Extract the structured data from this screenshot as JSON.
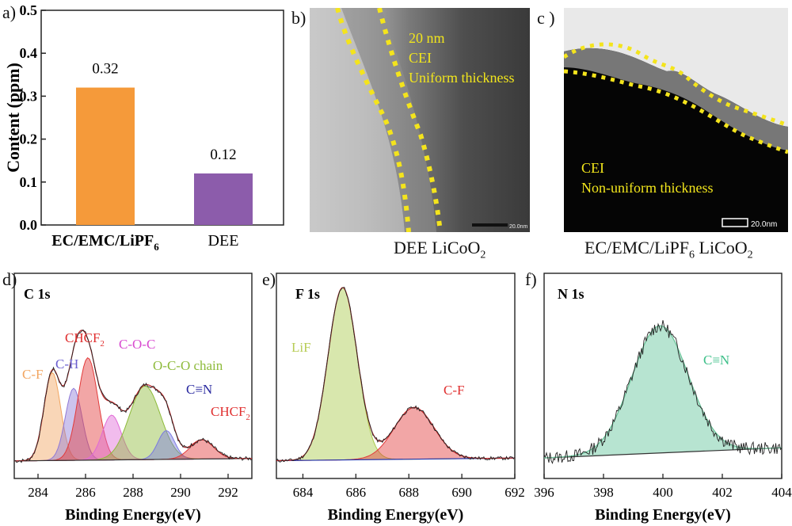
{
  "panels": {
    "a": "a)",
    "b": "b)",
    "c": "c )",
    "d": "d)",
    "e": "e)",
    "f": "f)"
  },
  "chart_a": {
    "type": "bar",
    "categories": [
      "EC/EMC/LiPF6",
      "DEE"
    ],
    "category_labels": [
      {
        "main": "EC/EMC/LiPF",
        "sub": "6"
      },
      {
        "main": "DEE",
        "sub": ""
      }
    ],
    "values": [
      0.32,
      0.12
    ],
    "value_labels": [
      "0.32",
      "0.12"
    ],
    "colors": [
      "#f59a3a",
      "#8c5cab"
    ],
    "ylabel": "Content (ppm)",
    "ylim": [
      0.0,
      0.5
    ],
    "yticks": [
      "0.0",
      "0.1",
      "0.2",
      "0.3",
      "0.4",
      "0.5"
    ]
  },
  "tem_b": {
    "lines": [
      "20 nm",
      "CEI",
      "Uniform thickness"
    ],
    "scale": "20.0nm",
    "caption": {
      "main": "DEE LiCoO",
      "sub": "2",
      "tail": ""
    }
  },
  "tem_c": {
    "lines": [
      "CEI",
      "Non-uniform thickness"
    ],
    "scale": "20.0nm",
    "caption": {
      "main": "EC/EMC/LiPF",
      "sub": "6",
      "tail": " LiCoO",
      "sub2": "2"
    }
  },
  "chart_data": [
    {
      "type": "bar",
      "categories": [
        "EC/EMC/LiPF6",
        "DEE"
      ],
      "values": [
        0.32,
        0.12
      ],
      "ylabel": "Content (ppm)",
      "ylim": [
        0.0,
        0.5
      ]
    },
    {
      "type": "line",
      "title": "C 1s",
      "xlabel": "Binding Energy(eV)",
      "xlim": [
        283,
        293
      ],
      "xticks": [
        "284",
        "286",
        "288",
        "290",
        "292"
      ],
      "peaks": [
        {
          "name": "C-F",
          "center": 284.6,
          "height": 0.55,
          "width": 0.35,
          "color": "#f2a560"
        },
        {
          "name": "C-H",
          "center": 285.5,
          "height": 0.45,
          "width": 0.35,
          "color": "#8f7ad6"
        },
        {
          "name": "CHCF2",
          "center": 286.1,
          "height": 0.64,
          "width": 0.42,
          "color": "#e23a3a"
        },
        {
          "name": "C-O-C",
          "center": 287.1,
          "height": 0.28,
          "width": 0.4,
          "color": "#e06ad6"
        },
        {
          "name": "O-C-O chain",
          "center": 288.5,
          "height": 0.46,
          "width": 0.65,
          "color": "#8dba3a"
        },
        {
          "name": "C≡N",
          "center": 289.4,
          "height": 0.18,
          "width": 0.35,
          "color": "#7a7ae0"
        },
        {
          "name": "CHCF2",
          "center": 290.9,
          "height": 0.12,
          "width": 0.5,
          "color": "#e23a3a"
        }
      ]
    },
    {
      "type": "line",
      "title": "F 1s",
      "xlabel": "Binding Energy(eV)",
      "xlim": [
        683,
        692
      ],
      "xticks": [
        "684",
        "686",
        "688",
        "690",
        "692"
      ],
      "peaks": [
        {
          "name": "LiF",
          "center": 685.5,
          "height": 1.0,
          "width": 0.55,
          "color": "#a9c94a"
        },
        {
          "name": "C-F",
          "center": 688.2,
          "height": 0.3,
          "width": 0.75,
          "color": "#e23a3a"
        }
      ]
    },
    {
      "type": "line",
      "title": "N 1s",
      "xlabel": "Binding Energy(eV)",
      "xlim": [
        396,
        404
      ],
      "xticks": [
        "396",
        "398",
        "400",
        "402",
        "404"
      ],
      "peaks": [
        {
          "name": "C≡N",
          "center": 399.9,
          "height": 1.0,
          "width": 0.95,
          "color": "#5fc49a"
        }
      ]
    }
  ],
  "xps_labels": {
    "d": {
      "title": "C 1s",
      "xlabel": "Binding Energy(eV)",
      "labels": [
        {
          "t": "C-F",
          "c": "#f2a560"
        },
        {
          "t": "C-H",
          "c": "#6b5fd0"
        },
        {
          "t": "CHCF",
          "s": "2",
          "c": "#e03030"
        },
        {
          "t": "C-O-C",
          "c": "#d84ad0"
        },
        {
          "t": "O-C-O chain",
          "c": "#8dba3a"
        },
        {
          "t": "C≡N",
          "c": "#2a2aa0"
        },
        {
          "t": "CHCF",
          "s": "2",
          "c": "#e03030"
        }
      ]
    },
    "e": {
      "title": "F 1s",
      "xlabel": "Binding Energy(eV)",
      "labels": [
        {
          "t": "LiF",
          "c": "#b7cc55"
        },
        {
          "t": "C-F",
          "c": "#e03030"
        }
      ]
    },
    "f": {
      "title": "N 1s",
      "xlabel": "Binding Energy(eV)",
      "labels": [
        {
          "t": "C≡N",
          "c": "#3fc08a"
        }
      ]
    }
  }
}
